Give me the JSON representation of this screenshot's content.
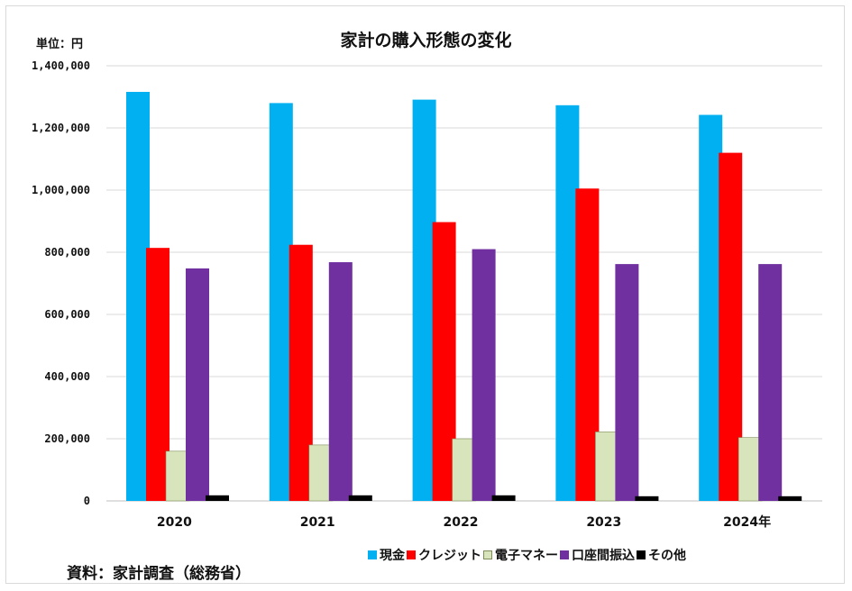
{
  "chart_data": {
    "type": "bar",
    "title": "家計の購入形態の変化",
    "unit_label": "単位：円",
    "source": "資料：家計調査（総務省）",
    "categories": [
      "2020",
      "2021",
      "2022",
      "2023",
      "2024年"
    ],
    "ylim": [
      0,
      1400000
    ],
    "y_ticks": [
      "0",
      "200,000",
      "400,000",
      "600,000",
      "800,000",
      "1,000,000",
      "1,200,000",
      "1,400,000"
    ],
    "y_tick_values": [
      0,
      200000,
      400000,
      600000,
      800000,
      1000000,
      1200000,
      1400000
    ],
    "grid": true,
    "legend_position": "bottom",
    "series": [
      {
        "name": "現金",
        "color": "#00b0f0",
        "values": [
          1316000,
          1280000,
          1291000,
          1273000,
          1242000
        ]
      },
      {
        "name": "クレジット",
        "color": "#ff0000",
        "values": [
          814000,
          824000,
          897000,
          1005000,
          1120000
        ]
      },
      {
        "name": "電子マネー",
        "color": "#d8e4bc",
        "values": [
          160000,
          180000,
          200000,
          222000,
          204000
        ]
      },
      {
        "name": "口座間振込",
        "color": "#7030a0",
        "values": [
          748000,
          768000,
          810000,
          762000,
          762000
        ]
      },
      {
        "name": "その他",
        "color": "#000000",
        "values": [
          18000,
          18000,
          18000,
          15000,
          15000
        ]
      }
    ]
  }
}
